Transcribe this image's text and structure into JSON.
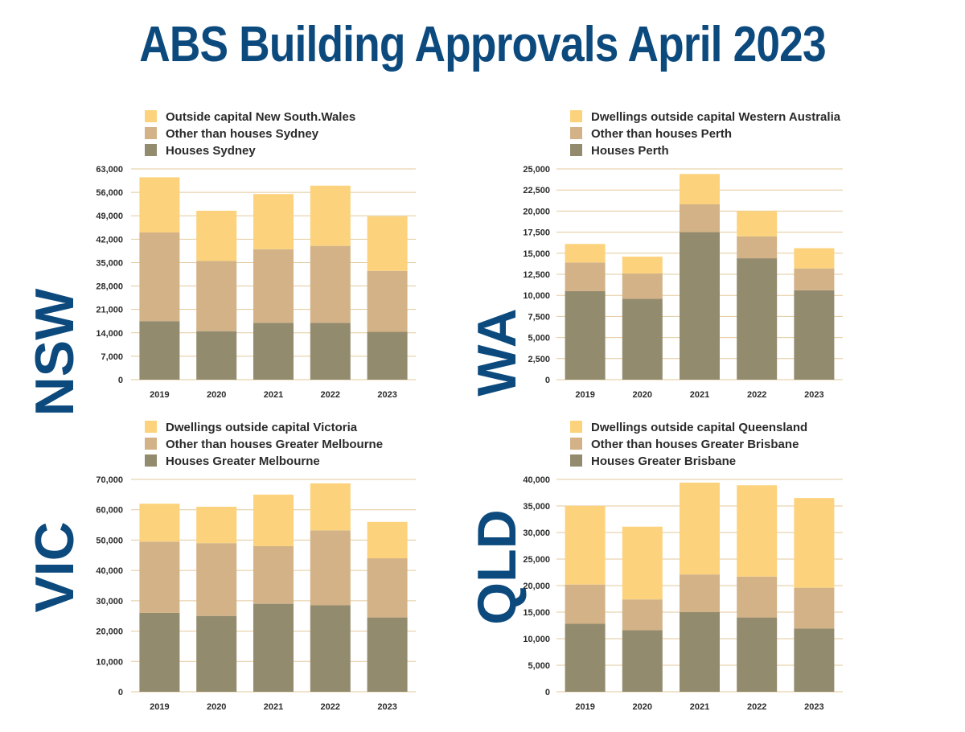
{
  "title": "ABS Building Approvals April 2023",
  "colors": {
    "houses": "#938b6e",
    "other": "#d3b287",
    "outside": "#fcd37c",
    "grid": "#e3c99b",
    "title": "#0c4a7e"
  },
  "chart_data": [
    {
      "type": "bar",
      "stacked": true,
      "state": "NSW",
      "categories": [
        "2019",
        "2020",
        "2021",
        "2022",
        "2023"
      ],
      "series": [
        {
          "name": "Houses  Sydney",
          "values": [
            17500,
            14500,
            17000,
            17000,
            14300
          ]
        },
        {
          "name": "Other than houses  Sydney",
          "values": [
            26500,
            21000,
            22000,
            23000,
            18200
          ]
        },
        {
          "name": "Outside capital New South.Wales",
          "values": [
            16500,
            15000,
            16500,
            18000,
            16300
          ]
        }
      ],
      "yticks": [
        "0",
        "7,000",
        "14,000",
        "21,000",
        "28,000",
        "35,000",
        "42,000",
        "49,000",
        "56,000",
        "63,000"
      ],
      "ylim": [
        0,
        63000
      ],
      "legend_position": "top"
    },
    {
      "type": "bar",
      "stacked": true,
      "state": "WA",
      "categories": [
        "2019",
        "2020",
        "2021",
        "2022",
        "2023"
      ],
      "series": [
        {
          "name": "Houses  Perth",
          "values": [
            10500,
            9600,
            17500,
            14400,
            10600
          ]
        },
        {
          "name": "Other than houses  Perth",
          "values": [
            3400,
            3000,
            3300,
            2600,
            2600
          ]
        },
        {
          "name": "Dwellings  outside capital  Western Australia",
          "values": [
            2200,
            2000,
            3600,
            3000,
            2400
          ]
        }
      ],
      "yticks": [
        "0",
        "2,500",
        "5,000",
        "7,500",
        "10,000",
        "12,500",
        "15,000",
        "17,500",
        "20,000",
        "22,500",
        "25,000"
      ],
      "ylim": [
        0,
        25000
      ],
      "legend_position": "top"
    },
    {
      "type": "bar",
      "stacked": true,
      "state": "VIC",
      "categories": [
        "2019",
        "2020",
        "2021",
        "2022",
        "2023"
      ],
      "series": [
        {
          "name": "Houses  Greater Melbourne",
          "values": [
            26000,
            25000,
            29000,
            28500,
            24500
          ]
        },
        {
          "name": "Other than houses  Greater Melbourne",
          "values": [
            23500,
            24000,
            19000,
            24700,
            19500
          ]
        },
        {
          "name": "Dwellings  outside capital  Victoria",
          "values": [
            12500,
            12000,
            17000,
            15500,
            12000
          ]
        }
      ],
      "yticks": [
        "0",
        "10,000",
        "20,000",
        "30,000",
        "40,000",
        "50,000",
        "60,000",
        "70,000"
      ],
      "ylim": [
        0,
        70000
      ],
      "legend_position": "top"
    },
    {
      "type": "bar",
      "stacked": true,
      "state": "QLD",
      "categories": [
        "2019",
        "2020",
        "2021",
        "2022",
        "2023"
      ],
      "series": [
        {
          "name": "Houses  Greater Brisbane",
          "values": [
            12800,
            11600,
            15000,
            14000,
            11900
          ]
        },
        {
          "name": "Other than houses  Greater Brisbane",
          "values": [
            7400,
            5800,
            7100,
            7700,
            7700
          ]
        },
        {
          "name": "Dwellings  outside capital  Queensland",
          "values": [
            14800,
            13700,
            17300,
            17200,
            16900
          ]
        }
      ],
      "yticks": [
        "0",
        "5,000",
        "10,000",
        "15,000",
        "20,000",
        "25,000",
        "30,000",
        "35,000",
        "40,000"
      ],
      "ylim": [
        0,
        40000
      ],
      "legend_position": "top"
    }
  ]
}
